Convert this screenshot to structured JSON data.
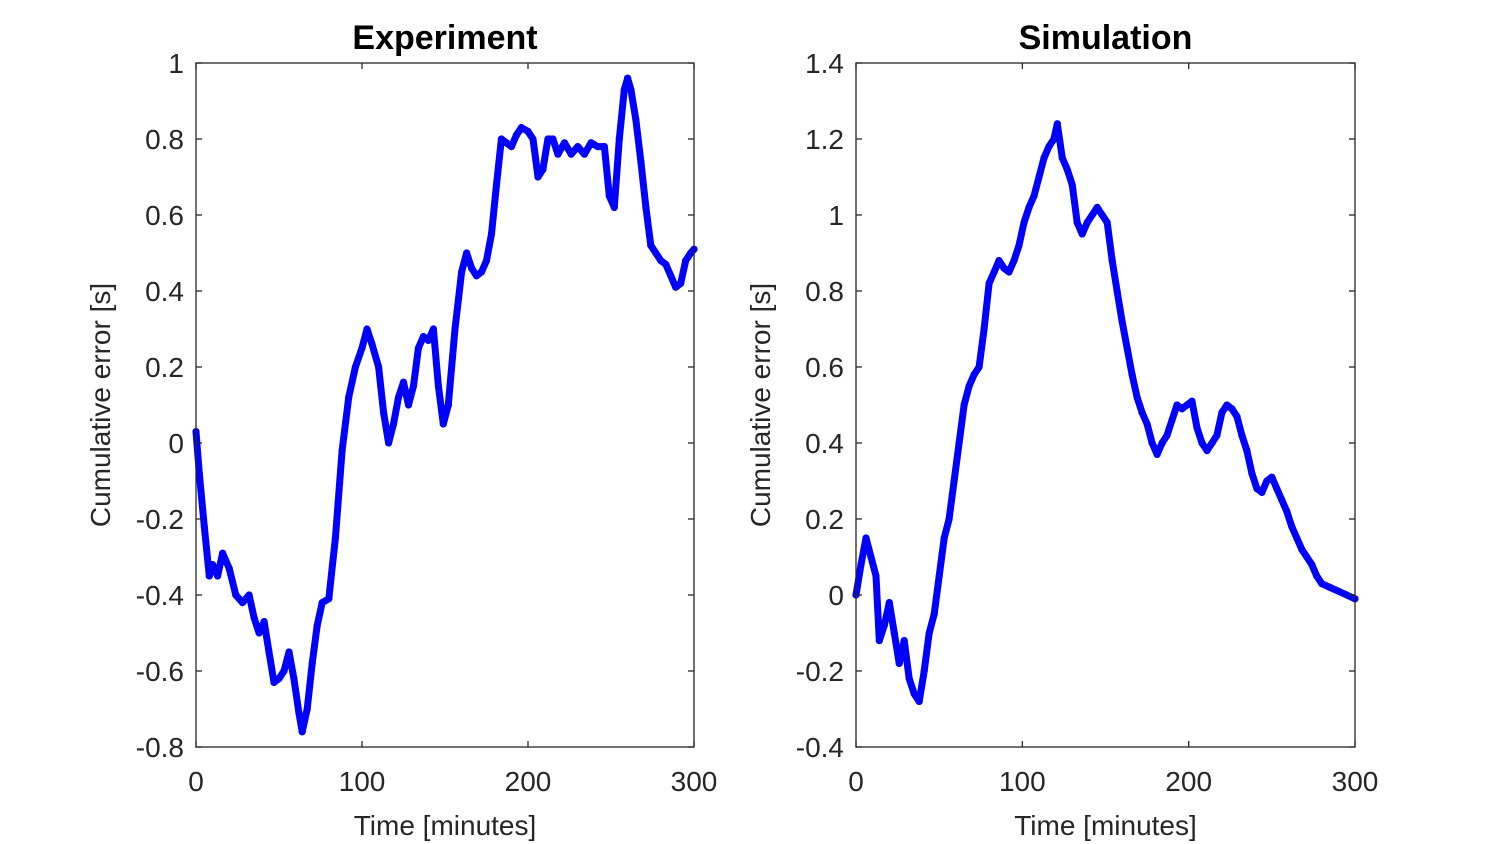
{
  "colors": {
    "series": "#0000ff",
    "axes": "#262626",
    "background": "#ffffff"
  },
  "chart_data": [
    {
      "type": "scatter",
      "title": "Experiment",
      "xlabel": "Time [minutes]",
      "ylabel": "Cumulative error [s]",
      "xlim": [
        0,
        300
      ],
      "ylim": [
        -0.8,
        1
      ],
      "xticks": [
        0,
        100,
        200,
        300
      ],
      "yticks": [
        -0.8,
        -0.6,
        -0.4,
        -0.2,
        0,
        0.2,
        0.4,
        0.6,
        0.8,
        1
      ],
      "xtick_labels": [
        "0",
        "100",
        "200",
        "300"
      ],
      "ytick_labels": [
        "-0.8",
        "-0.6",
        "-0.4",
        "-0.2",
        "0",
        "0.2",
        "0.4",
        "0.6",
        "0.8",
        "1"
      ],
      "series": [
        {
          "name": "Experiment",
          "points": [
            [
              0,
              0.03
            ],
            [
              2,
              -0.08
            ],
            [
              5,
              -0.22
            ],
            [
              8,
              -0.35
            ],
            [
              10,
              -0.32
            ],
            [
              13,
              -0.35
            ],
            [
              16,
              -0.29
            ],
            [
              20,
              -0.33
            ],
            [
              24,
              -0.4
            ],
            [
              28,
              -0.42
            ],
            [
              32,
              -0.4
            ],
            [
              35,
              -0.46
            ],
            [
              38,
              -0.5
            ],
            [
              41,
              -0.47
            ],
            [
              44,
              -0.55
            ],
            [
              47,
              -0.63
            ],
            [
              50,
              -0.62
            ],
            [
              53,
              -0.6
            ],
            [
              56,
              -0.55
            ],
            [
              59,
              -0.62
            ],
            [
              62,
              -0.71
            ],
            [
              64,
              -0.76
            ],
            [
              67,
              -0.7
            ],
            [
              70,
              -0.58
            ],
            [
              73,
              -0.48
            ],
            [
              76,
              -0.42
            ],
            [
              80,
              -0.41
            ],
            [
              84,
              -0.25
            ],
            [
              88,
              -0.02
            ],
            [
              92,
              0.12
            ],
            [
              96,
              0.2
            ],
            [
              100,
              0.25
            ],
            [
              103,
              0.3
            ],
            [
              106,
              0.26
            ],
            [
              110,
              0.2
            ],
            [
              113,
              0.08
            ],
            [
              116,
              0.0
            ],
            [
              119,
              0.05
            ],
            [
              122,
              0.12
            ],
            [
              125,
              0.16
            ],
            [
              128,
              0.1
            ],
            [
              131,
              0.15
            ],
            [
              134,
              0.25
            ],
            [
              137,
              0.28
            ],
            [
              140,
              0.27
            ],
            [
              143,
              0.3
            ],
            [
              146,
              0.15
            ],
            [
              149,
              0.05
            ],
            [
              152,
              0.1
            ],
            [
              156,
              0.3
            ],
            [
              160,
              0.45
            ],
            [
              163,
              0.5
            ],
            [
              166,
              0.46
            ],
            [
              169,
              0.44
            ],
            [
              172,
              0.45
            ],
            [
              175,
              0.48
            ],
            [
              178,
              0.55
            ],
            [
              181,
              0.68
            ],
            [
              184,
              0.8
            ],
            [
              187,
              0.79
            ],
            [
              190,
              0.78
            ],
            [
              193,
              0.81
            ],
            [
              196,
              0.83
            ],
            [
              200,
              0.82
            ],
            [
              203,
              0.8
            ],
            [
              206,
              0.7
            ],
            [
              209,
              0.72
            ],
            [
              212,
              0.8
            ],
            [
              215,
              0.8
            ],
            [
              218,
              0.76
            ],
            [
              222,
              0.79
            ],
            [
              226,
              0.76
            ],
            [
              230,
              0.78
            ],
            [
              234,
              0.76
            ],
            [
              238,
              0.79
            ],
            [
              242,
              0.78
            ],
            [
              246,
              0.78
            ],
            [
              249,
              0.65
            ],
            [
              252,
              0.62
            ],
            [
              255,
              0.8
            ],
            [
              258,
              0.93
            ],
            [
              260,
              0.96
            ],
            [
              262,
              0.93
            ],
            [
              265,
              0.85
            ],
            [
              268,
              0.74
            ],
            [
              271,
              0.62
            ],
            [
              274,
              0.52
            ],
            [
              277,
              0.5
            ],
            [
              280,
              0.48
            ],
            [
              283,
              0.47
            ],
            [
              286,
              0.44
            ],
            [
              289,
              0.41
            ],
            [
              292,
              0.42
            ],
            [
              295,
              0.48
            ],
            [
              298,
              0.5
            ],
            [
              300,
              0.51
            ]
          ]
        }
      ]
    },
    {
      "type": "scatter",
      "title": "Simulation",
      "xlabel": "Time [minutes]",
      "ylabel": "Cumulative error [s]",
      "xlim": [
        0,
        300
      ],
      "ylim": [
        -0.4,
        1.4
      ],
      "xticks": [
        0,
        100,
        200,
        300
      ],
      "yticks": [
        -0.4,
        -0.2,
        0,
        0.2,
        0.4,
        0.6,
        0.8,
        1,
        1.2,
        1.4
      ],
      "xtick_labels": [
        "0",
        "100",
        "200",
        "300"
      ],
      "ytick_labels": [
        "-0.4",
        "-0.2",
        "0",
        "0.2",
        "0.4",
        "0.6",
        "0.8",
        "1",
        "1.2",
        "1.4"
      ],
      "series": [
        {
          "name": "Simulation",
          "points": [
            [
              0,
              0.0
            ],
            [
              3,
              0.08
            ],
            [
              6,
              0.15
            ],
            [
              9,
              0.1
            ],
            [
              12,
              0.05
            ],
            [
              14,
              -0.12
            ],
            [
              17,
              -0.08
            ],
            [
              20,
              -0.02
            ],
            [
              23,
              -0.1
            ],
            [
              26,
              -0.18
            ],
            [
              29,
              -0.12
            ],
            [
              32,
              -0.22
            ],
            [
              35,
              -0.26
            ],
            [
              38,
              -0.28
            ],
            [
              41,
              -0.2
            ],
            [
              44,
              -0.1
            ],
            [
              47,
              -0.05
            ],
            [
              50,
              0.05
            ],
            [
              53,
              0.15
            ],
            [
              56,
              0.2
            ],
            [
              59,
              0.3
            ],
            [
              62,
              0.4
            ],
            [
              65,
              0.5
            ],
            [
              68,
              0.55
            ],
            [
              71,
              0.58
            ],
            [
              74,
              0.6
            ],
            [
              77,
              0.7
            ],
            [
              80,
              0.82
            ],
            [
              83,
              0.85
            ],
            [
              86,
              0.88
            ],
            [
              89,
              0.86
            ],
            [
              92,
              0.85
            ],
            [
              95,
              0.88
            ],
            [
              98,
              0.92
            ],
            [
              101,
              0.98
            ],
            [
              104,
              1.02
            ],
            [
              107,
              1.05
            ],
            [
              110,
              1.1
            ],
            [
              113,
              1.15
            ],
            [
              116,
              1.18
            ],
            [
              119,
              1.2
            ],
            [
              121,
              1.24
            ],
            [
              124,
              1.15
            ],
            [
              127,
              1.12
            ],
            [
              130,
              1.08
            ],
            [
              133,
              0.98
            ],
            [
              136,
              0.95
            ],
            [
              139,
              0.98
            ],
            [
              142,
              1.0
            ],
            [
              145,
              1.02
            ],
            [
              148,
              1.0
            ],
            [
              151,
              0.98
            ],
            [
              154,
              0.88
            ],
            [
              157,
              0.8
            ],
            [
              160,
              0.72
            ],
            [
              163,
              0.65
            ],
            [
              166,
              0.58
            ],
            [
              169,
              0.52
            ],
            [
              172,
              0.48
            ],
            [
              175,
              0.45
            ],
            [
              178,
              0.4
            ],
            [
              181,
              0.37
            ],
            [
              184,
              0.4
            ],
            [
              187,
              0.42
            ],
            [
              190,
              0.46
            ],
            [
              193,
              0.5
            ],
            [
              196,
              0.49
            ],
            [
              199,
              0.5
            ],
            [
              202,
              0.51
            ],
            [
              205,
              0.44
            ],
            [
              208,
              0.4
            ],
            [
              211,
              0.38
            ],
            [
              214,
              0.4
            ],
            [
              217,
              0.42
            ],
            [
              220,
              0.48
            ],
            [
              223,
              0.5
            ],
            [
              226,
              0.49
            ],
            [
              229,
              0.47
            ],
            [
              232,
              0.42
            ],
            [
              235,
              0.38
            ],
            [
              238,
              0.32
            ],
            [
              241,
              0.28
            ],
            [
              244,
              0.27
            ],
            [
              247,
              0.3
            ],
            [
              250,
              0.31
            ],
            [
              253,
              0.28
            ],
            [
              256,
              0.25
            ],
            [
              259,
              0.22
            ],
            [
              262,
              0.18
            ],
            [
              265,
              0.15
            ],
            [
              268,
              0.12
            ],
            [
              271,
              0.1
            ],
            [
              274,
              0.08
            ],
            [
              277,
              0.05
            ],
            [
              280,
              0.03
            ],
            [
              285,
              0.02
            ],
            [
              290,
              0.01
            ],
            [
              295,
              0.0
            ],
            [
              300,
              -0.01
            ]
          ]
        }
      ]
    }
  ]
}
